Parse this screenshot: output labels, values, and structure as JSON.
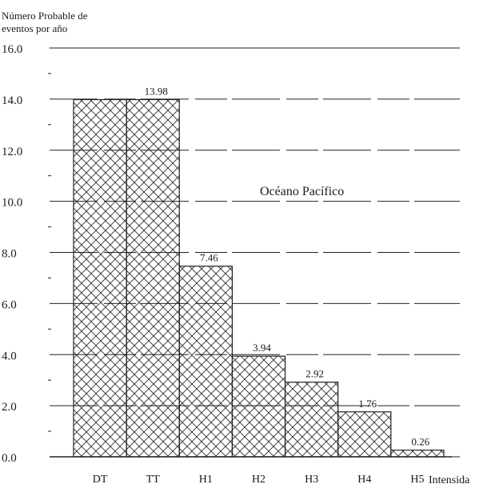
{
  "chart_data": {
    "type": "bar",
    "ylabel_line1": "Número Probable de",
    "ylabel_line2": "eventos por año",
    "xlabel": "Intensida",
    "annotation": "Océano Pacífico",
    "categories": [
      "DT",
      "TT",
      "H1",
      "H2",
      "H3",
      "H4",
      "H5"
    ],
    "values": [
      13.98,
      13.98,
      7.46,
      3.94,
      2.92,
      1.76,
      0.26
    ],
    "data_labels": [
      "",
      "13.98",
      "7.46",
      "3.94",
      "2.92",
      "1 76",
      "0.26"
    ],
    "yticks": [
      "0.0",
      "2.0",
      "4.0",
      "6.0",
      "8.0",
      "10.0",
      "12.0",
      "14.0",
      "16.0"
    ],
    "ylim": [
      0,
      16
    ],
    "grid": true,
    "colors": {
      "ink": "#222222",
      "background": "#ffffff"
    }
  }
}
